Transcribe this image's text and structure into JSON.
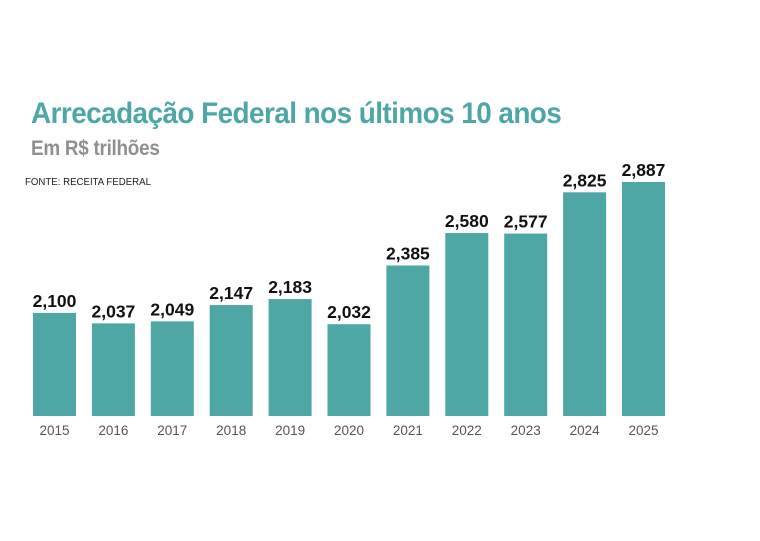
{
  "colors": {
    "bar": "#4ea7a5",
    "title": "#4ea7a5",
    "subtitle": "#8f8f8f"
  },
  "chart_data": {
    "type": "bar",
    "title": "Arrecadação Federal nos últimos 10 anos",
    "subtitle": "Em R$ trilhões",
    "source": "FONTE: RECEITA FEDERAL",
    "xlabel": "",
    "ylabel": "",
    "categories": [
      "2015",
      "2016",
      "2017",
      "2018",
      "2019",
      "2020",
      "2021",
      "2022",
      "2023",
      "2024",
      "2025"
    ],
    "values": [
      2.1,
      2.037,
      2.049,
      2.147,
      2.183,
      2.032,
      2.385,
      2.58,
      2.577,
      2.825,
      2.887
    ],
    "value_labels": [
      "2,100",
      "2,037",
      "2,049",
      "2,147",
      "2,183",
      "2,032",
      "2,385",
      "2,580",
      "2,577",
      "2,825",
      "2,887"
    ],
    "ylim": [
      1.48,
      2.887
    ],
    "grid": false,
    "legend": "none"
  }
}
